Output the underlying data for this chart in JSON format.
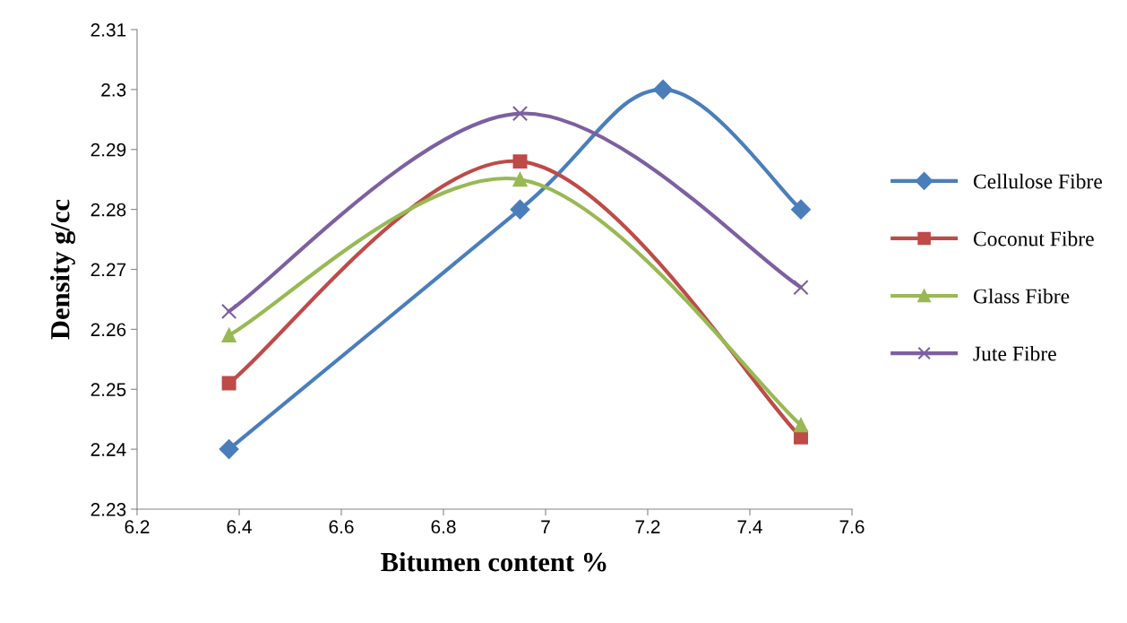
{
  "chart_data": {
    "type": "line",
    "xlabel": "Bitumen content %",
    "ylabel": "Density g/cc",
    "xlim": [
      6.2,
      7.6
    ],
    "xticks": [
      6.2,
      6.4,
      6.6,
      6.8,
      7,
      7.2,
      7.4,
      7.6
    ],
    "ylim": [
      2.23,
      2.31
    ],
    "yticks": [
      2.23,
      2.24,
      2.25,
      2.26,
      2.27,
      2.28,
      2.29,
      2.3,
      2.31
    ],
    "grid": false,
    "legend": "right",
    "line_style": "solid",
    "series": [
      {
        "name": "Cellulose Fibre",
        "color": "#4a7ebb",
        "marker": "diamond",
        "x": [
          6.38,
          6.95,
          7.23,
          7.5
        ],
        "values": [
          2.24,
          2.28,
          2.3,
          2.28
        ]
      },
      {
        "name": "Coconut Fibre",
        "color": "#be4b48",
        "marker": "square",
        "x": [
          6.38,
          6.95,
          7.5
        ],
        "values": [
          2.251,
          2.288,
          2.242
        ]
      },
      {
        "name": "Glass Fibre",
        "color": "#98b954",
        "marker": "triangle",
        "x": [
          6.38,
          6.95,
          7.5
        ],
        "values": [
          2.259,
          2.285,
          2.244
        ]
      },
      {
        "name": "Jute Fibre",
        "color": "#7d60a0",
        "marker": "cross",
        "x": [
          6.38,
          6.95,
          7.5
        ],
        "values": [
          2.263,
          2.296,
          2.267
        ]
      }
    ]
  }
}
